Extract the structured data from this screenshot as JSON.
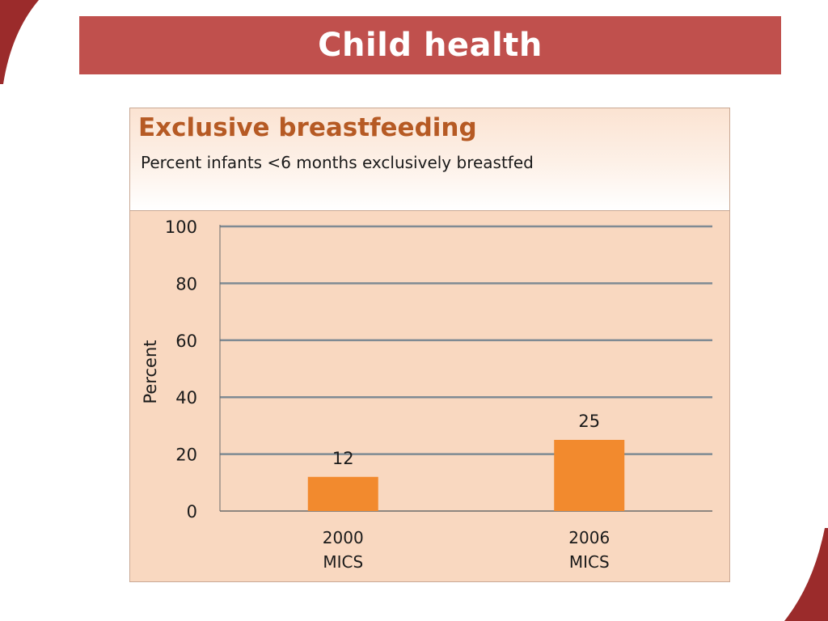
{
  "slide": {
    "title": "Child health"
  },
  "colors": {
    "banner": "#c0504d",
    "panel_bg": "#f9d8c0",
    "bar": "#f28a2e",
    "chart_title": "#b65a24",
    "corner_accent": "#9b2b2b"
  },
  "chart_data": {
    "type": "bar",
    "title": "Exclusive breastfeeding",
    "subtitle": "Percent infants <6 months exclusively breastfed",
    "ylabel": "Percent",
    "xlabel": "",
    "ylim": [
      0,
      100
    ],
    "yticks": [
      "0",
      "20",
      "40",
      "60",
      "80",
      "100"
    ],
    "grid": true,
    "categories": [
      [
        "2000",
        "MICS"
      ],
      [
        "2006",
        "MICS"
      ]
    ],
    "values": [
      12,
      25
    ],
    "data_labels": [
      "12",
      "25"
    ]
  }
}
